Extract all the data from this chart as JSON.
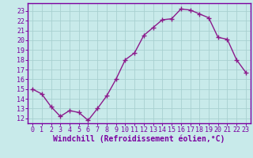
{
  "x": [
    0,
    1,
    2,
    3,
    4,
    5,
    6,
    7,
    8,
    9,
    10,
    11,
    12,
    13,
    14,
    15,
    16,
    17,
    18,
    19,
    20,
    21,
    22,
    23
  ],
  "y": [
    15.0,
    14.5,
    13.2,
    12.2,
    12.8,
    12.6,
    11.8,
    13.0,
    14.3,
    16.0,
    18.0,
    18.7,
    20.5,
    21.3,
    22.1,
    22.2,
    23.2,
    23.1,
    22.7,
    22.3,
    20.3,
    20.1,
    18.0,
    16.7
  ],
  "line_color": "#8b1a8b",
  "marker": "+",
  "marker_size": 4,
  "marker_linewidth": 1.0,
  "bg_color": "#c8eaea",
  "grid_color": "#a8d0d0",
  "xlabel": "Windchill (Refroidissement éolien,°C)",
  "ylabel": "",
  "xlim_min": -0.5,
  "xlim_max": 23.5,
  "ylim_min": 11.5,
  "ylim_max": 23.8,
  "xticks": [
    0,
    1,
    2,
    3,
    4,
    5,
    6,
    7,
    8,
    9,
    10,
    11,
    12,
    13,
    14,
    15,
    16,
    17,
    18,
    19,
    20,
    21,
    22,
    23
  ],
  "yticks": [
    12,
    13,
    14,
    15,
    16,
    17,
    18,
    19,
    20,
    21,
    22,
    23
  ],
  "tick_label_fontsize": 6.0,
  "xlabel_fontsize": 7.0,
  "spine_color": "#7b00a0",
  "label_color": "#7b00a0",
  "linewidth": 1.0
}
